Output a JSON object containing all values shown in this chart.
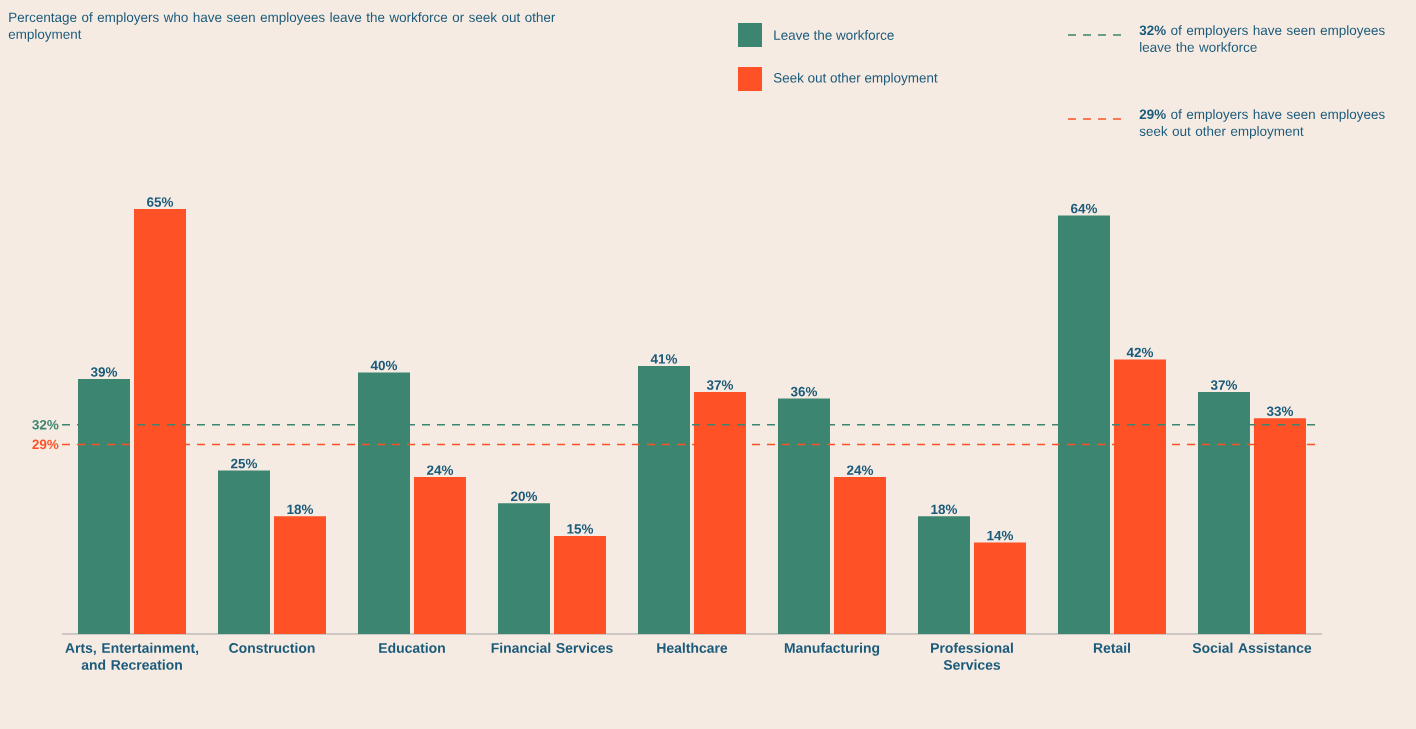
{
  "chart_data": {
    "type": "bar",
    "title": "Percentage of employers who have seen employees leave the workforce or seek out other employment",
    "categories": [
      "Arts, Entertainment, and Recreation",
      "Construction",
      "Education",
      "Financial Services",
      "Healthcare",
      "Manufacturing",
      "Professional Services",
      "Retail",
      "Social Assistance"
    ],
    "series": [
      {
        "name": "Leave the workforce",
        "color": "#3c8570",
        "values": [
          39,
          25,
          40,
          20,
          41,
          36,
          18,
          64,
          37
        ],
        "value_labels": [
          "39%",
          "25%",
          "40%",
          "20%",
          "41%",
          "36%",
          "18%",
          "64%",
          "37%"
        ]
      },
      {
        "name": "Seek out other employment",
        "color": "#ff5126",
        "values": [
          65,
          18,
          24,
          15,
          37,
          24,
          14,
          42,
          33
        ],
        "value_labels": [
          "65%",
          "18%",
          "24%",
          "15%",
          "37%",
          "24%",
          "14%",
          "42%",
          "33%"
        ]
      }
    ],
    "ref_lines": [
      {
        "axis": "y",
        "value": 32,
        "label": "**32%** of employers have seen employees leave the workforce",
        "color": "#3c8570",
        "line_style": "dashed"
      },
      {
        "axis": "y",
        "value": 29,
        "label": "**29%** of employers have seen employees seek out other employment",
        "color": "#ff5126",
        "line_style": "dashed"
      }
    ],
    "annotations": [
      "32%",
      "29%"
    ],
    "legend": "top right"
  }
}
